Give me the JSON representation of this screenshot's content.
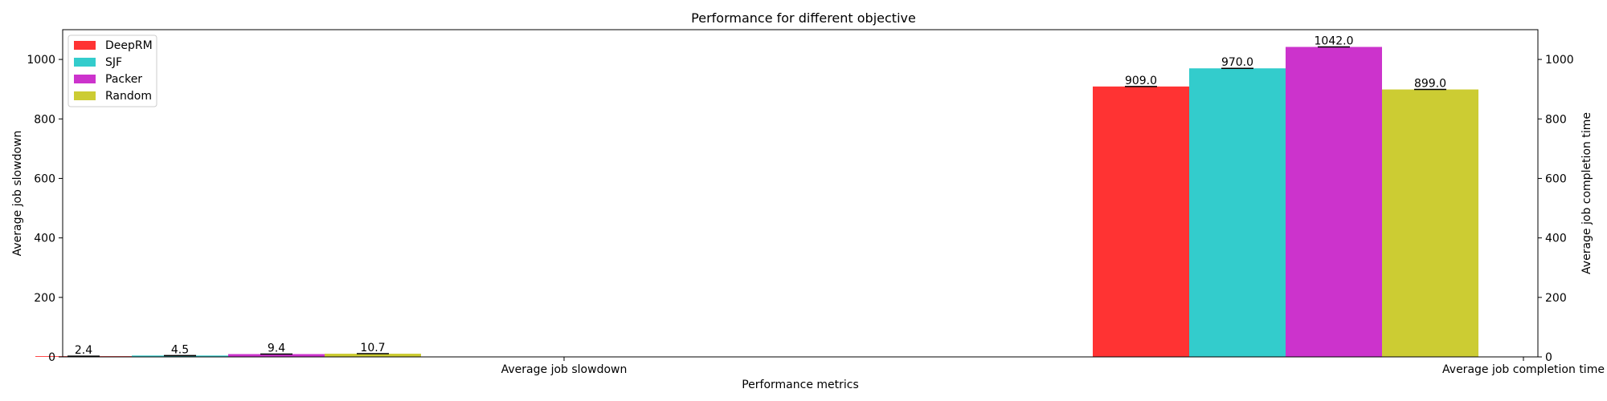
{
  "chart_data": {
    "type": "bar",
    "title": "Performance for different objective",
    "xlabel": "Performance metrics",
    "ylabel_left": "Average job slowdown",
    "ylabel_right": "Average job completion time",
    "categories": [
      "Average job slowdown",
      "Average job completion time"
    ],
    "ylim": [
      0,
      1100
    ],
    "yticks": [
      0,
      200,
      400,
      600,
      800,
      1000
    ],
    "legend_position": "top-left",
    "grid": false,
    "series": [
      {
        "name": "DeepRM",
        "color": "#ff3333",
        "values": [
          2.4,
          909.0
        ],
        "value_labels": [
          "2.4",
          "909.0"
        ]
      },
      {
        "name": "SJF",
        "color": "#33cccc",
        "values": [
          4.5,
          970.0
        ],
        "value_labels": [
          "4.5",
          "970.0"
        ]
      },
      {
        "name": "Packer",
        "color": "#cc33cc",
        "values": [
          9.4,
          1042.0
        ],
        "value_labels": [
          "9.4",
          "1042.0"
        ]
      },
      {
        "name": "Random",
        "color": "#cccc33",
        "values": [
          10.7,
          899.0
        ],
        "value_labels": [
          "10.7",
          "899.0"
        ]
      }
    ]
  }
}
